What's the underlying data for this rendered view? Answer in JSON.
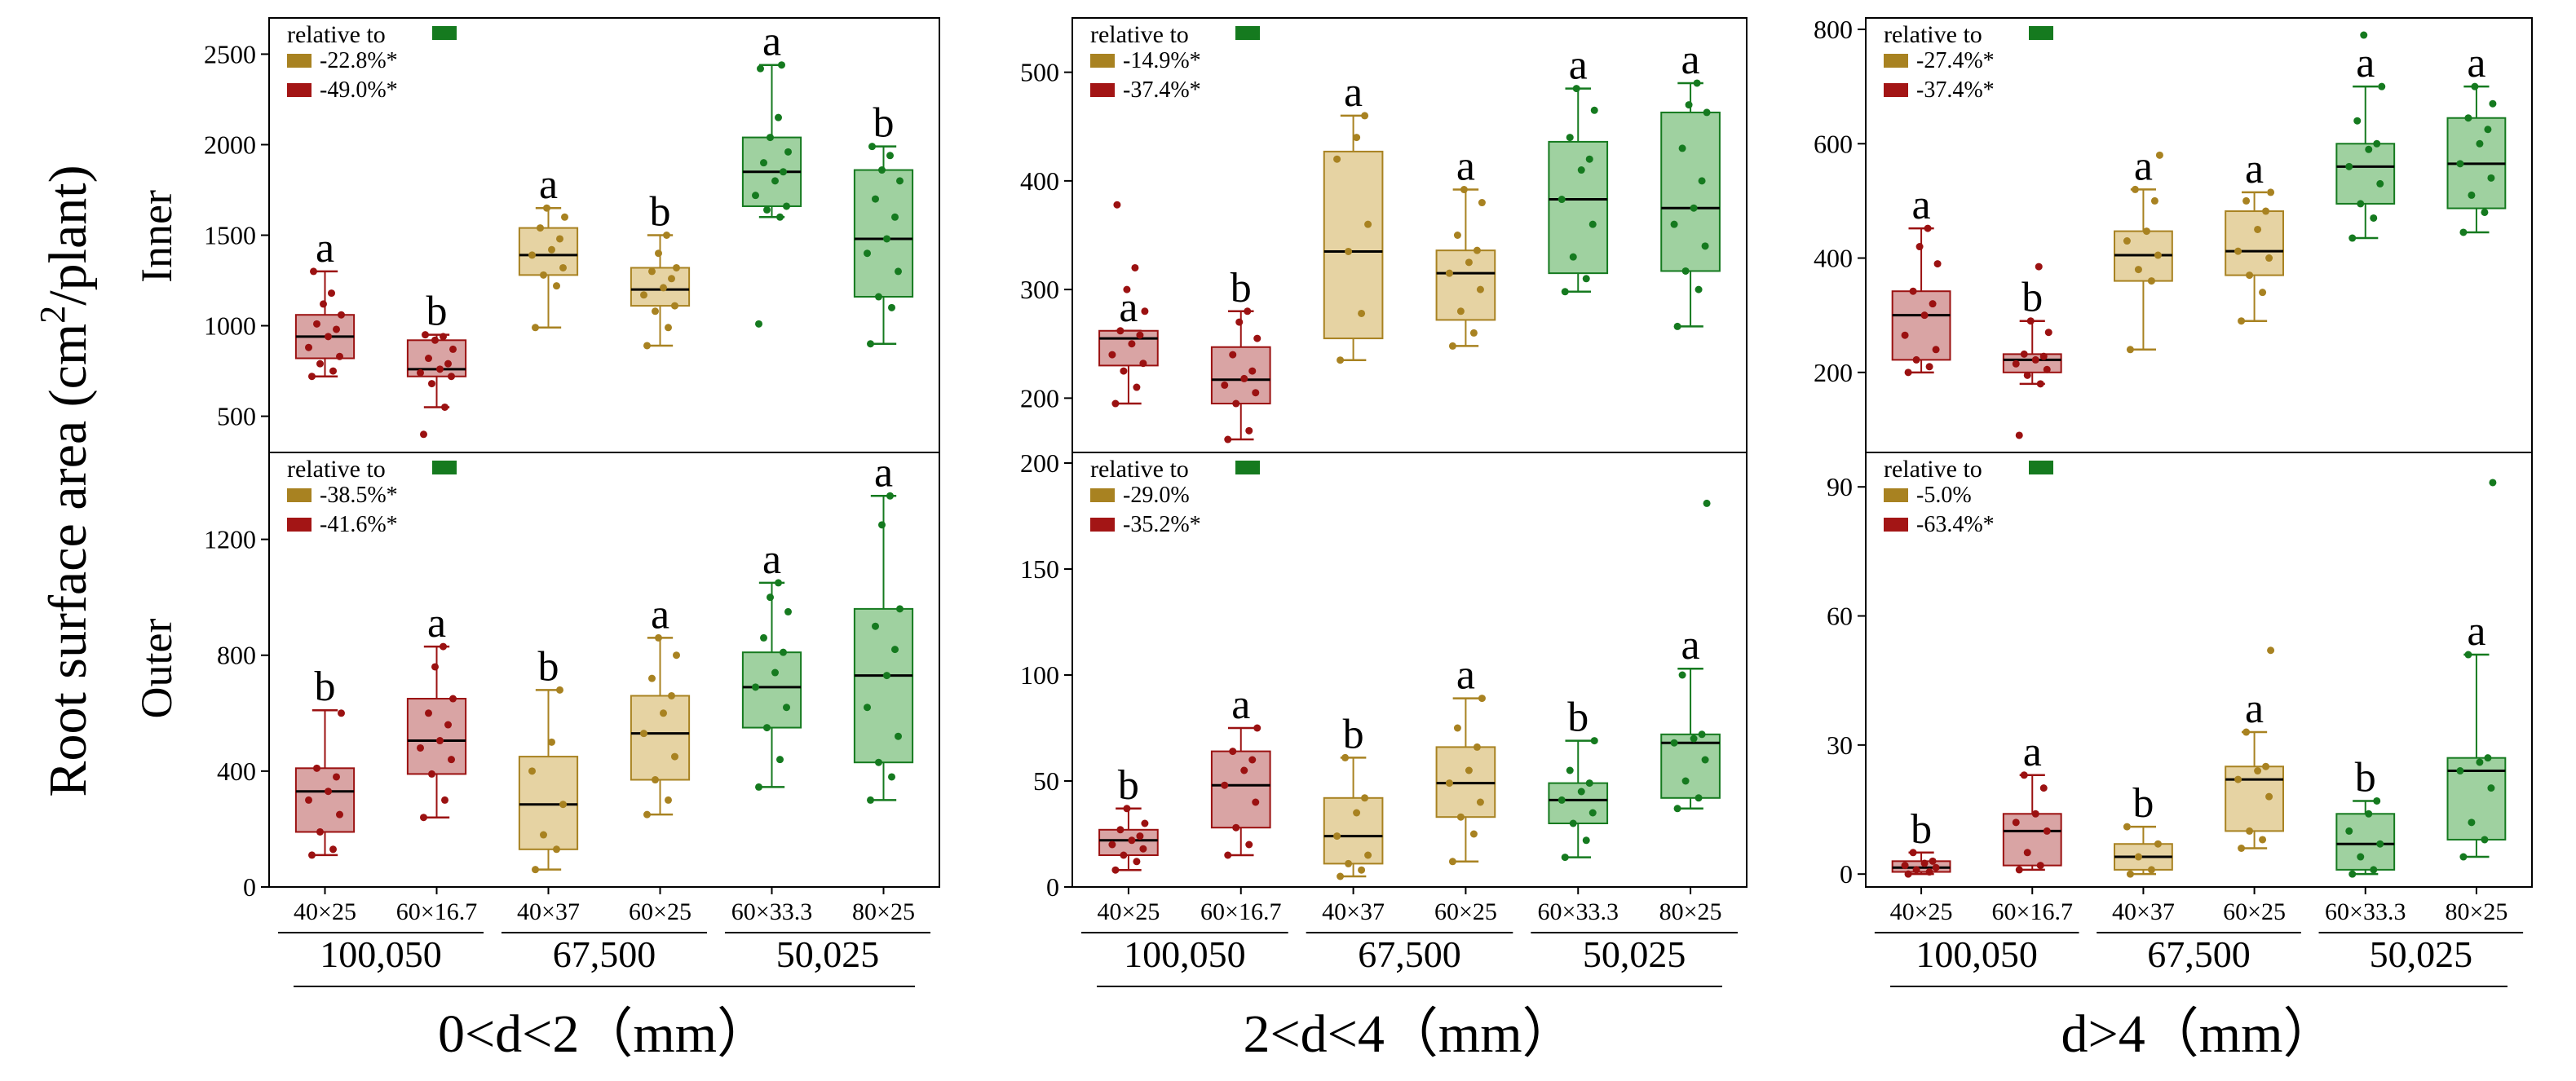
{
  "figure": {
    "ylabel_main": "Root surface area (cm",
    "ylabel_sup": "2",
    "ylabel_end": "/plant)",
    "row_labels": [
      "Inner",
      "Outer"
    ],
    "legend_title": "relative to",
    "categories": [
      "40×25",
      "60×16.7",
      "40×37",
      "60×25",
      "60×33.3",
      "80×25"
    ],
    "groups": [
      "100,050",
      "67,500",
      "50,025"
    ],
    "colors": {
      "red_fill": "#d9a4a4",
      "red_edge": "#9b1111",
      "tan_fill": "#e6d3a3",
      "tan_edge": "#a88221",
      "green_fill": "#9fd1a0",
      "green_edge": "#157a1f",
      "legend_red": "#a31515",
      "legend_tan": "#a88221",
      "legend_green": "#157a1f"
    }
  },
  "chart_data": [
    {
      "type": "box",
      "title": "0<d<2（mm）",
      "row": "Inner",
      "ylim": [
        300,
        2700
      ],
      "yticks": [
        500,
        1000,
        1500,
        2000,
        2500
      ],
      "legend": [
        "-22.8%*",
        "-49.0%*"
      ],
      "boxes": [
        {
          "category": "40×25",
          "whisker_low": 720,
          "q1": 820,
          "median": 940,
          "q3": 1060,
          "whisker_high": 1300,
          "letter": "a",
          "points": [
            720,
            750,
            790,
            830,
            880,
            940,
            980,
            1010,
            1060,
            1120,
            1180,
            1300
          ]
        },
        {
          "category": "60×16.7",
          "whisker_low": 550,
          "q1": 720,
          "median": 760,
          "q3": 920,
          "whisker_high": 950,
          "letter": "b",
          "points": [
            400,
            550,
            680,
            720,
            740,
            760,
            790,
            820,
            870,
            920,
            940,
            950
          ]
        },
        {
          "category": "40×37",
          "whisker_low": 990,
          "q1": 1280,
          "median": 1390,
          "q3": 1540,
          "whisker_high": 1650,
          "letter": "a",
          "points": [
            990,
            1220,
            1280,
            1320,
            1390,
            1420,
            1480,
            1540,
            1600,
            1650
          ]
        },
        {
          "category": "60×25",
          "whisker_low": 890,
          "q1": 1110,
          "median": 1200,
          "q3": 1320,
          "whisker_high": 1500,
          "letter": "b",
          "points": [
            890,
            990,
            1080,
            1110,
            1170,
            1210,
            1260,
            1300,
            1320,
            1400,
            1500
          ]
        },
        {
          "category": "60×33.3",
          "whisker_low": 1600,
          "q1": 1660,
          "median": 1850,
          "q3": 2040,
          "whisker_high": 2440,
          "letter": "a",
          "points": [
            1010,
            1600,
            1640,
            1660,
            1720,
            1800,
            1850,
            1900,
            1960,
            2040,
            2150,
            2420,
            2440
          ]
        },
        {
          "category": "80×25",
          "whisker_low": 900,
          "q1": 1160,
          "median": 1480,
          "q3": 1860,
          "whisker_high": 1990,
          "letter": "b",
          "points": [
            900,
            1100,
            1160,
            1300,
            1400,
            1480,
            1600,
            1700,
            1800,
            1860,
            1940,
            1990
          ]
        }
      ]
    },
    {
      "type": "box",
      "title": "2<d<4（mm）",
      "row": "Inner",
      "ylim": [
        150,
        550
      ],
      "yticks": [
        200,
        300,
        400,
        500
      ],
      "legend": [
        "-14.9%*",
        "-37.4%*"
      ],
      "boxes": [
        {
          "category": "40×25",
          "whisker_low": 195,
          "q1": 230,
          "median": 255,
          "q3": 262,
          "whisker_high": 262,
          "letter": "a",
          "points": [
            195,
            210,
            225,
            232,
            240,
            250,
            258,
            262,
            280,
            300,
            320,
            378
          ]
        },
        {
          "category": "60×16.7",
          "whisker_low": 162,
          "q1": 195,
          "median": 217,
          "q3": 247,
          "whisker_high": 280,
          "letter": "b",
          "points": [
            162,
            170,
            195,
            205,
            212,
            218,
            225,
            240,
            255,
            270,
            280
          ]
        },
        {
          "category": "40×37",
          "whisker_low": 235,
          "q1": 255,
          "median": 335,
          "q3": 427,
          "whisker_high": 460,
          "letter": "a",
          "points": [
            235,
            278,
            335,
            360,
            420,
            440,
            460
          ]
        },
        {
          "category": "60×25",
          "whisker_low": 248,
          "q1": 272,
          "median": 315,
          "q3": 336,
          "whisker_high": 392,
          "letter": "a",
          "points": [
            248,
            260,
            280,
            300,
            315,
            325,
            336,
            350,
            380,
            392
          ]
        },
        {
          "category": "60×33.3",
          "whisker_low": 298,
          "q1": 315,
          "median": 383,
          "q3": 436,
          "whisker_high": 485,
          "letter": "a",
          "points": [
            298,
            310,
            330,
            360,
            383,
            410,
            420,
            440,
            465,
            485
          ]
        },
        {
          "category": "80×25",
          "whisker_low": 266,
          "q1": 317,
          "median": 375,
          "q3": 463,
          "whisker_high": 490,
          "letter": "a",
          "points": [
            266,
            300,
            317,
            340,
            360,
            375,
            400,
            430,
            463,
            470,
            490
          ]
        }
      ]
    },
    {
      "type": "box",
      "title": "d>4（mm）",
      "row": "Inner",
      "ylim": [
        60,
        820
      ],
      "yticks": [
        200,
        400,
        600,
        800
      ],
      "legend": [
        "-27.4%*",
        "-37.4%*"
      ],
      "boxes": [
        {
          "category": "40×25",
          "whisker_low": 200,
          "q1": 222,
          "median": 300,
          "q3": 342,
          "whisker_high": 452,
          "letter": "a",
          "points": [
            200,
            210,
            222,
            240,
            265,
            300,
            320,
            342,
            390,
            420,
            452
          ]
        },
        {
          "category": "60×16.7",
          "whisker_low": 180,
          "q1": 200,
          "median": 222,
          "q3": 232,
          "whisker_high": 290,
          "letter": "b",
          "points": [
            90,
            180,
            195,
            205,
            215,
            222,
            228,
            232,
            270,
            290,
            385
          ]
        },
        {
          "category": "40×37",
          "whisker_low": 240,
          "q1": 360,
          "median": 405,
          "q3": 447,
          "whisker_high": 520,
          "letter": "a",
          "points": [
            240,
            360,
            380,
            405,
            430,
            447,
            500,
            520,
            580
          ]
        },
        {
          "category": "60×25",
          "whisker_low": 290,
          "q1": 370,
          "median": 412,
          "q3": 482,
          "whisker_high": 515,
          "letter": "a",
          "points": [
            290,
            340,
            370,
            400,
            412,
            450,
            482,
            500,
            515
          ]
        },
        {
          "category": "60×33.3",
          "whisker_low": 435,
          "q1": 495,
          "median": 560,
          "q3": 600,
          "whisker_high": 700,
          "letter": "a",
          "points": [
            435,
            470,
            495,
            530,
            560,
            590,
            600,
            640,
            700,
            790
          ]
        },
        {
          "category": "80×25",
          "whisker_low": 445,
          "q1": 487,
          "median": 565,
          "q3": 645,
          "whisker_high": 700,
          "letter": "a",
          "points": [
            445,
            480,
            510,
            540,
            565,
            600,
            625,
            645,
            670,
            700
          ]
        }
      ]
    },
    {
      "type": "box",
      "title": "0<d<2（mm）",
      "row": "Outer",
      "ylim": [
        0,
        1500
      ],
      "yticks": [
        0,
        400,
        800,
        1200
      ],
      "legend": [
        "-38.5%*",
        "-41.6%*"
      ],
      "boxes": [
        {
          "category": "40×25",
          "whisker_low": 110,
          "q1": 190,
          "median": 330,
          "q3": 410,
          "whisker_high": 610,
          "letter": "b",
          "points": [
            110,
            130,
            190,
            250,
            300,
            330,
            380,
            410,
            600
          ]
        },
        {
          "category": "60×16.7",
          "whisker_low": 240,
          "q1": 390,
          "median": 505,
          "q3": 650,
          "whisker_high": 830,
          "letter": "a",
          "points": [
            240,
            300,
            390,
            440,
            480,
            505,
            560,
            600,
            650,
            760,
            830
          ]
        },
        {
          "category": "40×37",
          "whisker_low": 60,
          "q1": 130,
          "median": 285,
          "q3": 450,
          "whisker_high": 680,
          "letter": "b",
          "points": [
            60,
            130,
            180,
            285,
            400,
            500,
            680
          ]
        },
        {
          "category": "60×25",
          "whisker_low": 250,
          "q1": 370,
          "median": 530,
          "q3": 660,
          "whisker_high": 860,
          "letter": "a",
          "points": [
            250,
            300,
            370,
            450,
            530,
            600,
            660,
            720,
            800,
            860
          ]
        },
        {
          "category": "60×33.3",
          "whisker_low": 345,
          "q1": 550,
          "median": 690,
          "q3": 810,
          "whisker_high": 1050,
          "letter": "a",
          "points": [
            345,
            440,
            550,
            620,
            690,
            740,
            810,
            860,
            950,
            1000,
            1050
          ]
        },
        {
          "category": "80×25",
          "whisker_low": 300,
          "q1": 430,
          "median": 730,
          "q3": 960,
          "whisker_high": 1350,
          "letter": "a",
          "points": [
            300,
            380,
            430,
            520,
            620,
            730,
            820,
            900,
            960,
            1250,
            1350
          ]
        }
      ]
    },
    {
      "type": "box",
      "title": "2<d<4（mm）",
      "row": "Outer",
      "ylim": [
        0,
        205
      ],
      "yticks": [
        0,
        50,
        100,
        150,
        200
      ],
      "legend": [
        "-29.0%",
        "-35.2%*"
      ],
      "boxes": [
        {
          "category": "40×25",
          "whisker_low": 8,
          "q1": 15,
          "median": 22,
          "q3": 27,
          "whisker_high": 37,
          "letter": "b",
          "points": [
            8,
            12,
            15,
            18,
            20,
            22,
            24,
            27,
            30,
            37
          ]
        },
        {
          "category": "60×16.7",
          "whisker_low": 15,
          "q1": 28,
          "median": 48,
          "q3": 64,
          "whisker_high": 75,
          "letter": "a",
          "points": [
            15,
            20,
            28,
            40,
            48,
            55,
            60,
            64,
            75
          ]
        },
        {
          "category": "40×37",
          "whisker_low": 5,
          "q1": 11,
          "median": 24,
          "q3": 42,
          "whisker_high": 61,
          "letter": "b",
          "points": [
            5,
            8,
            11,
            15,
            24,
            35,
            42,
            61
          ]
        },
        {
          "category": "60×25",
          "whisker_low": 12,
          "q1": 33,
          "median": 49,
          "q3": 66,
          "whisker_high": 89,
          "letter": "a",
          "points": [
            12,
            25,
            33,
            40,
            49,
            55,
            66,
            75,
            89
          ]
        },
        {
          "category": "60×33.3",
          "whisker_low": 14,
          "q1": 30,
          "median": 41,
          "q3": 49,
          "whisker_high": 69,
          "letter": "b",
          "points": [
            14,
            22,
            30,
            35,
            41,
            45,
            49,
            55,
            69
          ]
        },
        {
          "category": "80×25",
          "whisker_low": 37,
          "q1": 42,
          "median": 68,
          "q3": 72,
          "whisker_high": 103,
          "letter": "a",
          "points": [
            37,
            42,
            50,
            60,
            68,
            70,
            72,
            100,
            181
          ]
        }
      ]
    },
    {
      "type": "box",
      "title": "d>4（mm）",
      "row": "Outer",
      "ylim": [
        -3,
        98
      ],
      "yticks": [
        0,
        30,
        60,
        90
      ],
      "legend": [
        "-5.0%",
        "-63.4%*"
      ],
      "boxes": [
        {
          "category": "40×25",
          "whisker_low": 0,
          "q1": 0.5,
          "median": 1.5,
          "q3": 3,
          "whisker_high": 5,
          "letter": "b",
          "points": [
            0,
            0.5,
            1,
            1.5,
            2,
            2.5,
            3,
            5
          ]
        },
        {
          "category": "60×16.7",
          "whisker_low": 1,
          "q1": 2,
          "median": 10,
          "q3": 14,
          "whisker_high": 23,
          "letter": "a",
          "points": [
            1,
            2,
            5,
            10,
            12,
            14,
            20,
            23
          ]
        },
        {
          "category": "40×37",
          "whisker_low": 0,
          "q1": 1,
          "median": 4,
          "q3": 7,
          "whisker_high": 11,
          "letter": "b",
          "points": [
            0,
            1,
            4,
            7,
            11
          ]
        },
        {
          "category": "60×25",
          "whisker_low": 6,
          "q1": 10,
          "median": 22,
          "q3": 25,
          "whisker_high": 33,
          "letter": "a",
          "points": [
            6,
            8,
            10,
            18,
            22,
            24,
            25,
            33,
            52
          ]
        },
        {
          "category": "60×33.3",
          "whisker_low": 0,
          "q1": 1,
          "median": 7,
          "q3": 14,
          "whisker_high": 17,
          "letter": "b",
          "points": [
            0,
            1,
            4,
            7,
            10,
            14,
            17
          ]
        },
        {
          "category": "80×25",
          "whisker_low": 4,
          "q1": 8,
          "median": 24,
          "q3": 27,
          "whisker_high": 51,
          "letter": "a",
          "points": [
            4,
            8,
            12,
            20,
            24,
            26,
            27,
            51,
            91
          ]
        }
      ]
    }
  ]
}
